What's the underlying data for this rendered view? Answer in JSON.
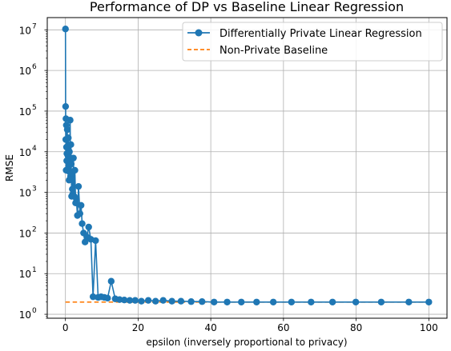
{
  "chart_data": {
    "type": "line",
    "title": "Performance of DP vs Baseline Linear Regression",
    "xlabel": "epsilon (inversely proportional to privacy)",
    "ylabel": "RMSE",
    "xlim": [
      -5,
      105
    ],
    "ylim": [
      0.8,
      20000000
    ],
    "yscale": "log",
    "grid": true,
    "legend_position": "top-right",
    "x_ticks": [
      {
        "value": 0,
        "label": "0"
      },
      {
        "value": 20,
        "label": "20"
      },
      {
        "value": 40,
        "label": "40"
      },
      {
        "value": 60,
        "label": "60"
      },
      {
        "value": 80,
        "label": "80"
      },
      {
        "value": 100,
        "label": "100"
      }
    ],
    "y_ticks": [
      {
        "value": 1,
        "base": "10",
        "exp": "0"
      },
      {
        "value": 10,
        "base": "10",
        "exp": "1"
      },
      {
        "value": 100,
        "base": "10",
        "exp": "2"
      },
      {
        "value": 1000,
        "base": "10",
        "exp": "3"
      },
      {
        "value": 10000,
        "base": "10",
        "exp": "4"
      },
      {
        "value": 100000,
        "base": "10",
        "exp": "5"
      },
      {
        "value": 1000000,
        "base": "10",
        "exp": "6"
      },
      {
        "value": 10000000,
        "base": "10",
        "exp": "7"
      }
    ],
    "series": [
      {
        "name": "Differentially Private Linear Regression",
        "color": "#1f77b4",
        "style": "line-with-circle-markers",
        "x": [
          0.01,
          0.05,
          0.1,
          0.15,
          0.2,
          0.25,
          0.3,
          0.35,
          0.4,
          0.5,
          0.6,
          0.7,
          0.8,
          0.9,
          1.0,
          1.1,
          1.2,
          1.3,
          1.4,
          1.5,
          1.6,
          1.7,
          1.8,
          1.9,
          2.0,
          2.2,
          2.4,
          2.6,
          2.8,
          3.0,
          3.3,
          3.6,
          4.0,
          4.3,
          4.6,
          5.0,
          5.4,
          5.9,
          6.4,
          7.0,
          7.6,
          8.3,
          9.0,
          9.8,
          10.7,
          11.6,
          12.6,
          13.7,
          14.9,
          16.2,
          17.7,
          19.2,
          20.9,
          22.8,
          24.8,
          26.9,
          29.3,
          31.8,
          34.6,
          37.6,
          40.9,
          44.5,
          48.4,
          52.6,
          57.2,
          62.2,
          67.6,
          73.5,
          79.9,
          86.9,
          94.5,
          100.0
        ],
        "y": [
          10500000,
          130000,
          20000,
          65000,
          3500,
          45000,
          13000,
          6000,
          9000,
          35000,
          3400,
          8000,
          22000,
          4500,
          2000,
          10000,
          3200,
          60000,
          2500,
          15000,
          5000,
          800,
          3000,
          1200,
          900,
          7000,
          800,
          3500,
          550,
          700,
          270,
          1400,
          300,
          480,
          170,
          100,
          60,
          80,
          140,
          70,
          2.7,
          65,
          2.6,
          2.7,
          2.6,
          2.5,
          6.5,
          2.4,
          2.3,
          2.25,
          2.2,
          2.2,
          2.1,
          2.2,
          2.1,
          2.2,
          2.1,
          2.1,
          2.05,
          2.05,
          2.0,
          2.0,
          2.0,
          2.0,
          2.0,
          2.0,
          2.0,
          2.0,
          2.0,
          2.0,
          2.0,
          2.0
        ]
      },
      {
        "name": "Non-Private Baseline",
        "color": "#ff7f0e",
        "style": "dashed-line",
        "x": [
          0,
          100
        ],
        "y": [
          2.0,
          2.0
        ]
      }
    ]
  }
}
